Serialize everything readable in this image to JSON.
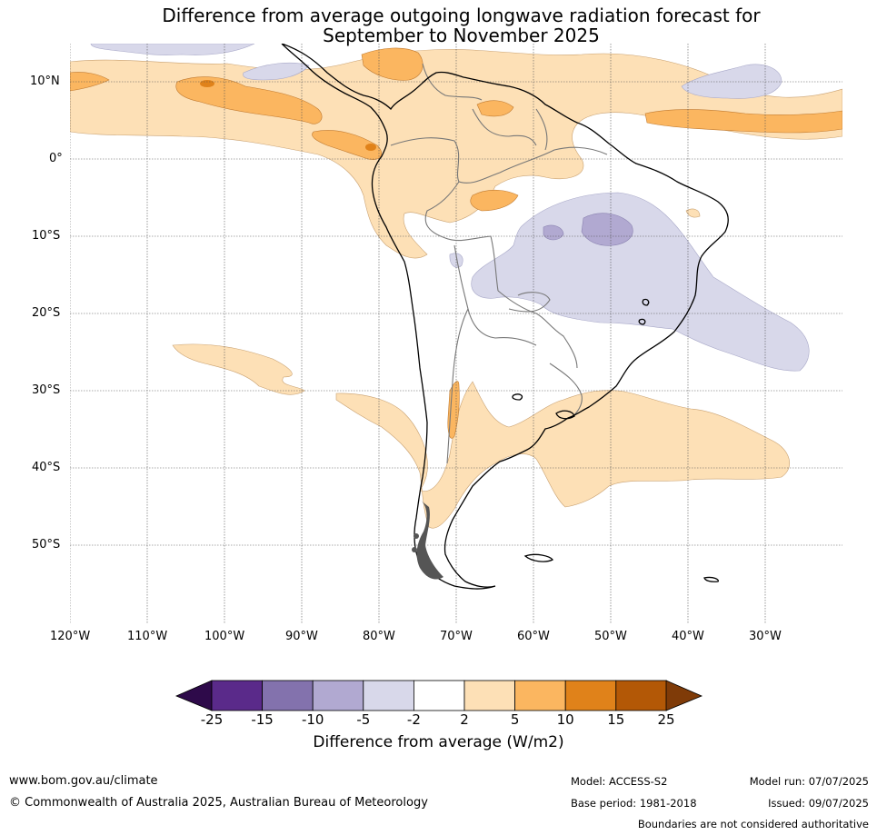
{
  "title_line1": "Difference from average outgoing longwave radiation forecast for",
  "title_line2": "September to November 2025",
  "lat_labels": [
    "10°N",
    "0°",
    "10°S",
    "20°S",
    "30°S",
    "40°S",
    "50°S"
  ],
  "lon_labels": [
    "120°W",
    "110°W",
    "100°W",
    "90°W",
    "80°W",
    "70°W",
    "60°W",
    "50°W",
    "40°W",
    "30°W"
  ],
  "colorbar": {
    "ticks": [
      "-25",
      "-15",
      "-10",
      "-5",
      "-2",
      "2",
      "5",
      "10",
      "15",
      "25"
    ],
    "colors": [
      "#2e0a4a",
      "#5a2a8a",
      "#8372ad",
      "#b1a9d1",
      "#d8d8ea",
      "#ffffff",
      "#fde0b6",
      "#fbb660",
      "#e0821a",
      "#b35806",
      "#7f3b08"
    ],
    "label": "Difference from average (W/m2)"
  },
  "footer": {
    "website": "www.bom.gov.au/climate",
    "copyright": "© Commonwealth of Australia 2025, Australian Bureau of Meteorology",
    "model": "Model: ACCESS-S2",
    "model_run": "Model run: 07/07/2025",
    "base_period": "Base period: 1981-2018",
    "issued": "Issued: 09/07/2025",
    "disclaimer": "Boundaries are not considered authoritative"
  }
}
